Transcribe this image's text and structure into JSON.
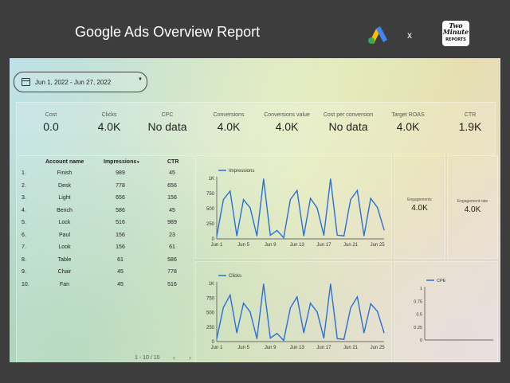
{
  "header": {
    "title": "Google Ads Overview Report",
    "separator": "x",
    "partner_logo": {
      "line1": "Two",
      "line2": "Minute",
      "line3": "REPORTS"
    }
  },
  "date_range": {
    "value": "Jun 1, 2022 - Jun 27, 2022"
  },
  "kpis": [
    {
      "label": "Cost",
      "value": "0.0"
    },
    {
      "label": "Clicks",
      "value": "4.0K"
    },
    {
      "label": "CPC",
      "value": "No data"
    },
    {
      "label": "Conversions",
      "value": "4.0K"
    },
    {
      "label": "Conversions value",
      "value": "4.0K"
    },
    {
      "label": "Cost per conversion",
      "value": "No data"
    },
    {
      "label": "Target ROAS",
      "value": "4.0K"
    },
    {
      "label": "CTR",
      "value": "1.9K"
    }
  ],
  "table": {
    "headers": {
      "name": "Account name",
      "impressions": "Impressions",
      "sort": "▾",
      "ctr": "CTR"
    },
    "rows": [
      {
        "idx": "1.",
        "name": "Finish",
        "impressions": "989",
        "ctr": "45"
      },
      {
        "idx": "2.",
        "name": "Desk",
        "impressions": "778",
        "ctr": "656"
      },
      {
        "idx": "3.",
        "name": "Light",
        "impressions": "656",
        "ctr": "156"
      },
      {
        "idx": "4.",
        "name": "Bench",
        "impressions": "586",
        "ctr": "45"
      },
      {
        "idx": "5.",
        "name": "Lock",
        "impressions": "516",
        "ctr": "989"
      },
      {
        "idx": "6.",
        "name": "Paul",
        "impressions": "156",
        "ctr": "23"
      },
      {
        "idx": "7.",
        "name": "Look",
        "impressions": "156",
        "ctr": "61"
      },
      {
        "idx": "8.",
        "name": "Table",
        "impressions": "61",
        "ctr": "586"
      },
      {
        "idx": "9.",
        "name": "Chair",
        "impressions": "45",
        "ctr": "778"
      },
      {
        "idx": "10.",
        "name": "Fan",
        "impressions": "45",
        "ctr": "516"
      }
    ],
    "pagination": "1 - 10 / 10",
    "prev": "‹",
    "next": "›"
  },
  "engagements": {
    "label": "Engagements",
    "value": "4.0K"
  },
  "engagement_rate": {
    "label": "Engagement rate",
    "value": "4.0K"
  },
  "colors": {
    "line": "#2b6fd6",
    "accent_blue": "#4285f4",
    "accent_yellow": "#fbbc04",
    "accent_green": "#34a853"
  },
  "chart_data": [
    {
      "type": "line",
      "series_name": "Impressions",
      "x_ticks": [
        "Jun 1",
        "Jun 5",
        "Jun 9",
        "Jun 13",
        "Jun 17",
        "Jun 21",
        "Jun 25"
      ],
      "y_ticks": [
        "0",
        "250",
        "500",
        "750",
        "1K"
      ],
      "ylim": [
        0,
        1000
      ],
      "values": [
        50,
        650,
        790,
        50,
        650,
        510,
        50,
        990,
        60,
        140,
        20,
        650,
        800,
        50,
        670,
        510,
        60,
        990,
        60,
        50,
        650,
        800,
        50,
        670,
        520,
        150
      ]
    },
    {
      "type": "line",
      "series_name": "Clicks",
      "x_ticks": [
        "Jun 1",
        "Jun 5",
        "Jun 9",
        "Jun 13",
        "Jun 17",
        "Jun 21",
        "Jun 25"
      ],
      "y_ticks": [
        "0",
        "250",
        "500",
        "750",
        "1K"
      ],
      "ylim": [
        0,
        1000
      ],
      "values": [
        50,
        590,
        800,
        150,
        660,
        510,
        50,
        990,
        60,
        140,
        20,
        580,
        770,
        150,
        660,
        510,
        60,
        990,
        50,
        40,
        580,
        770,
        150,
        650,
        520,
        150
      ]
    },
    {
      "type": "line",
      "series_name": "CPE",
      "x_ticks": [],
      "y_ticks": [
        "0",
        "0.25",
        "0.5",
        "0.75",
        "1"
      ],
      "ylim": [
        0,
        1
      ],
      "values": []
    }
  ]
}
